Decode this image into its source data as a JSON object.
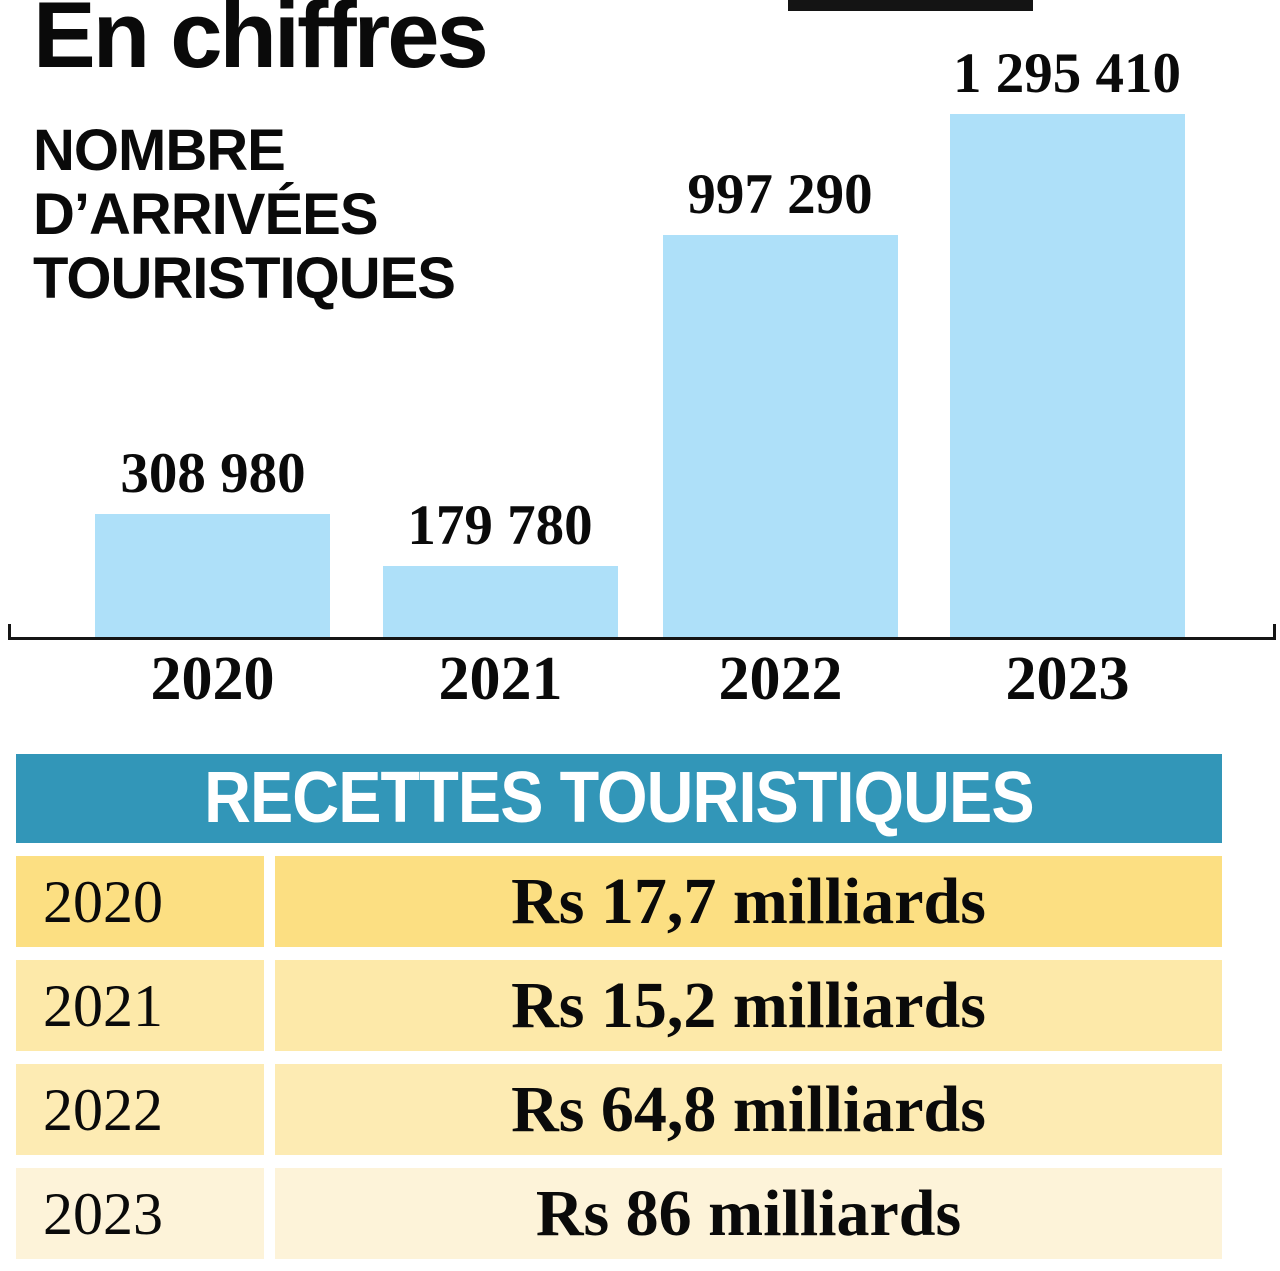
{
  "title": "En chiffres",
  "subtitle_lines": [
    "NOMBRE",
    "D’ARRIVÉES",
    "TOURISTIQUES"
  ],
  "chart_data": {
    "type": "bar",
    "title": "NOMBRE D’ARRIVÉES TOURISTIQUES",
    "categories": [
      "2020",
      "2021",
      "2022",
      "2023"
    ],
    "values": [
      308980,
      179780,
      997290,
      1295410
    ],
    "value_labels": [
      "308 980",
      "179 780",
      "997 290",
      "1 295 410"
    ],
    "xlabel": "",
    "ylabel": "",
    "ylim": [
      0,
      1300000
    ],
    "grid": false,
    "legend": false,
    "bar_color": "#aee0f9",
    "axis_color": "#151515"
  },
  "table": {
    "header": "RECETTES TOURISTIQUES",
    "header_bg": "#3296b8",
    "header_text_color": "#ffffff",
    "rows": [
      {
        "year": "2020",
        "value": "Rs 17,7 milliards",
        "bg": "#fcdf82"
      },
      {
        "year": "2021",
        "value": "Rs 15,2 milliards",
        "bg": "#fde9a9"
      },
      {
        "year": "2022",
        "value": "Rs 64,8 milliards",
        "bg": "#fdebb3"
      },
      {
        "year": "2023",
        "value": "Rs 86 milliards",
        "bg": "#fdf3d9"
      }
    ]
  },
  "colors": {
    "background": "#ffffff",
    "text": "#0a0a0a"
  }
}
